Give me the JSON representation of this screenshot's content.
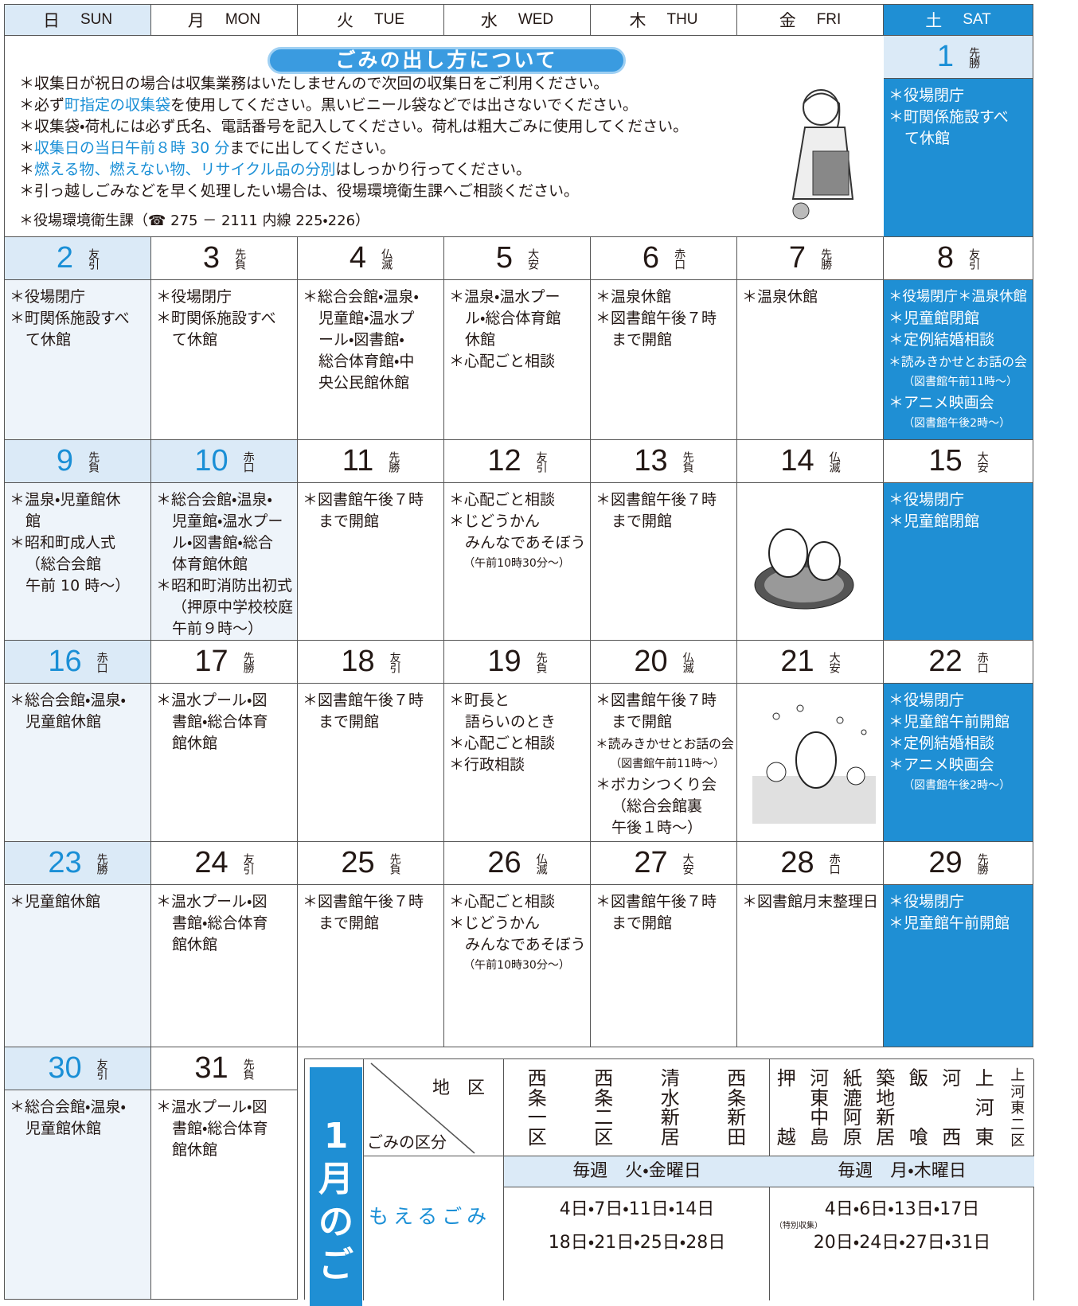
{
  "header": {
    "days": [
      {
        "ja": "日",
        "en": "SUN"
      },
      {
        "ja": "月",
        "en": "MON"
      },
      {
        "ja": "火",
        "en": "TUE"
      },
      {
        "ja": "水",
        "en": "WED"
      },
      {
        "ja": "木",
        "en": "THU"
      },
      {
        "ja": "金",
        "en": "FRI"
      },
      {
        "ja": "土",
        "en": "SAT"
      }
    ]
  },
  "notice": {
    "title": "ごみの出し方について",
    "lines": [
      [
        {
          "text": "＊収集日が祝日の場合は収集業務はいたしませんので次回の収集日をご利用ください。",
          "color": "#231815"
        }
      ],
      [
        {
          "text": "＊必ず",
          "color": "#231815"
        },
        {
          "text": "町指定の収集袋",
          "color": "#1a8fd6"
        },
        {
          "text": "を使用してください。黒いビニール袋などでは出さないでください。",
          "color": "#231815"
        }
      ],
      [
        {
          "text": "＊収集袋・荷札には必ず氏名、電話番号を記入してください。荷札は粗大ごみに使用してください。",
          "color": "#231815"
        }
      ],
      [
        {
          "text": "＊",
          "color": "#231815"
        },
        {
          "text": "収集日の当日午前８時 30 分",
          "color": "#1a8fd6"
        },
        {
          "text": "までに出してください。",
          "color": "#231815"
        }
      ],
      [
        {
          "text": "＊",
          "color": "#231815"
        },
        {
          "text": "燃える物、燃えない物、リサイクル品の分別",
          "color": "#1a8fd6"
        },
        {
          "text": "はしっかり行ってください。",
          "color": "#231815"
        }
      ],
      [
        {
          "text": "＊引っ越しごみなどを早く処理したい場合は、役場環境衛生課へご相談ください。",
          "color": "#231815"
        }
      ]
    ],
    "contact": "＊役場環境衛生課（☎ 275 － 2111 内線 225・226）"
  },
  "days": [
    {
      "day": 1,
      "rokuyo": "先勝",
      "events": [
        "＊役場閉庁",
        "＊町関係施設すべ",
        "て休館"
      ]
    },
    {
      "day": 2,
      "rokuyo": "友引",
      "events": [
        "＊役場閉庁",
        "＊町関係施設すべ",
        "て休館"
      ]
    },
    {
      "day": 3,
      "rokuyo": "先負",
      "events": [
        "＊役場閉庁",
        "＊町関係施設すべ",
        "て休館"
      ]
    },
    {
      "day": 4,
      "rokuyo": "仏滅",
      "events": [
        "＊総合会館・温泉・",
        "児童館・温水プ",
        "ール・図書館・",
        "総合体育館・中",
        "央公民館休館"
      ]
    },
    {
      "day": 5,
      "rokuyo": "大安",
      "events": [
        "＊温泉・温水プー",
        "ル・総合体育館",
        "休館",
        "＊心配ごと相談"
      ]
    },
    {
      "day": 6,
      "rokuyo": "赤口",
      "events": [
        "＊温泉休館",
        "＊図書館午後７時",
        "まで開館"
      ]
    },
    {
      "day": 7,
      "rokuyo": "先勝",
      "events": [
        "＊温泉休館"
      ]
    },
    {
      "day": 8,
      "rokuyo": "友引",
      "events": [
        "＊役場閉庁＊温泉休館",
        "＊児童館閉館",
        "＊定例結婚相談",
        "＊読みきかせとお話の会",
        "（図書館午前11時〜）",
        "＊アニメ映画会",
        "（図書館午後2時〜）"
      ]
    },
    {
      "day": 9,
      "rokuyo": "先負",
      "events": [
        "＊温泉・児童館休",
        "館",
        "＊昭和町成人式",
        "（総合会館",
        "午前 10 時〜）"
      ]
    },
    {
      "day": 10,
      "rokuyo": "赤口",
      "holiday": true,
      "events": [
        "＊総合会館・温泉・",
        "児童館・温水プー",
        "ル・図書館・総合",
        "体育館休館",
        "＊昭和町消防出初式",
        "（押原中学校校庭",
        "午前９時〜）"
      ]
    },
    {
      "day": 11,
      "rokuyo": "先勝",
      "events": [
        "＊図書館午後７時",
        "まで開館"
      ]
    },
    {
      "day": 12,
      "rokuyo": "友引",
      "events": [
        "＊心配ごと相談",
        "＊じどうかん",
        "みんなであそぼう",
        "（午前10時30分〜）"
      ]
    },
    {
      "day": 13,
      "rokuyo": "先負",
      "events": [
        "＊図書館午後７時",
        "まで開館"
      ]
    },
    {
      "day": 14,
      "rokuyo": "仏滅",
      "events": []
    },
    {
      "day": 15,
      "rokuyo": "大安",
      "events": [
        "＊役場閉庁",
        "＊児童館閉館"
      ]
    },
    {
      "day": 16,
      "rokuyo": "赤口",
      "events": [
        "＊総合会館・温泉・",
        "児童館休館"
      ]
    },
    {
      "day": 17,
      "rokuyo": "先勝",
      "events": [
        "＊温水プール・図",
        "書館・総合体育",
        "館休館"
      ]
    },
    {
      "day": 18,
      "rokuyo": "友引",
      "events": [
        "＊図書館午後７時",
        "まで開館"
      ]
    },
    {
      "day": 19,
      "rokuyo": "先負",
      "events": [
        "＊町長と",
        "語らいのとき",
        "＊心配ごと相談",
        "＊行政相談"
      ]
    },
    {
      "day": 20,
      "rokuyo": "仏滅",
      "events": [
        "＊図書館午後７時",
        "まで開館",
        "＊読みきかせとお話の会",
        "（図書館午前11時〜）",
        "＊ボカシつくり会",
        "（総合会館裏",
        "午後１時〜）"
      ]
    },
    {
      "day": 21,
      "rokuyo": "大安",
      "events": []
    },
    {
      "day": 22,
      "rokuyo": "赤口",
      "events": [
        "＊役場閉庁",
        "＊児童館午前開館",
        "＊定例結婚相談",
        "＊アニメ映画会",
        "（図書館午後2時〜）"
      ]
    },
    {
      "day": 23,
      "rokuyo": "先勝",
      "events": [
        "＊児童館休館"
      ]
    },
    {
      "day": 24,
      "rokuyo": "友引",
      "events": [
        "＊温水プール・図",
        "書館・総合体育",
        "館休館"
      ]
    },
    {
      "day": 25,
      "rokuyo": "先負",
      "events": [
        "＊図書館午後７時",
        "まで開館"
      ]
    },
    {
      "day": 26,
      "rokuyo": "仏滅",
      "events": [
        "＊心配ごと相談",
        "＊じどうかん",
        "みんなであそぼう",
        "（午前10時30分〜）"
      ]
    },
    {
      "day": 27,
      "rokuyo": "大安",
      "events": [
        "＊図書館午後７時",
        "まで開館"
      ]
    },
    {
      "day": 28,
      "rokuyo": "赤口",
      "events": [
        "＊図書館月末整理日"
      ]
    },
    {
      "day": 29,
      "rokuyo": "先勝",
      "events": [
        "＊役場閉庁",
        "＊児童館午前開館"
      ]
    },
    {
      "day": 30,
      "rokuyo": "友引",
      "events": [
        "＊総合会館・温泉・",
        "児童館休館"
      ]
    },
    {
      "day": 31,
      "rokuyo": "先負",
      "events": [
        "＊温水プール・図",
        "書館・総合体育",
        "館休館"
      ]
    }
  ],
  "garbage": {
    "banner": "1月のご",
    "area_header": "地　区",
    "type_header": "ごみの区分",
    "type": "もえるごみ",
    "groups": [
      {
        "districts": [
          "西条一区",
          "西条二区",
          "清水新居",
          "西条新田"
        ],
        "schedule": "毎週　火・金曜日",
        "dates": [
          "4日・7日・11日・14日",
          "18日・21日・25日・28日"
        ]
      },
      {
        "districts": [
          "押越",
          "河東中島",
          "紙漉阿原",
          "築地新居",
          "飯喰",
          "河西",
          "上河東",
          "上河東二区"
        ],
        "schedule": "毎週　月・木曜日",
        "dates": [
          "4日・6日・13日・17日",
          "20日・24日・27日・31日"
        ],
        "note": "（特別収集）"
      }
    ]
  }
}
